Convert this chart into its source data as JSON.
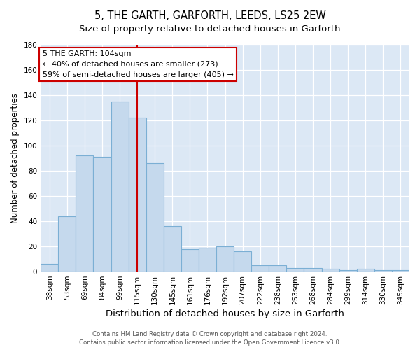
{
  "title": "5, THE GARTH, GARFORTH, LEEDS, LS25 2EW",
  "subtitle": "Size of property relative to detached houses in Garforth",
  "xlabel": "Distribution of detached houses by size in Garforth",
  "ylabel": "Number of detached properties",
  "categories": [
    "38sqm",
    "53sqm",
    "69sqm",
    "84sqm",
    "99sqm",
    "115sqm",
    "130sqm",
    "145sqm",
    "161sqm",
    "176sqm",
    "192sqm",
    "207sqm",
    "222sqm",
    "238sqm",
    "253sqm",
    "268sqm",
    "284sqm",
    "299sqm",
    "314sqm",
    "330sqm",
    "345sqm"
  ],
  "values": [
    6,
    44,
    92,
    91,
    135,
    122,
    86,
    36,
    18,
    19,
    20,
    16,
    5,
    5,
    3,
    3,
    2,
    1,
    2,
    1,
    1
  ],
  "bar_color": "#c5d9ed",
  "bar_edge_color": "#7bafd4",
  "vline_x": 5.0,
  "vline_color": "#cc0000",
  "ylim": [
    0,
    180
  ],
  "yticks": [
    0,
    20,
    40,
    60,
    80,
    100,
    120,
    140,
    160,
    180
  ],
  "annotation_title": "5 THE GARTH: 104sqm",
  "annotation_line2": "← 40% of detached houses are smaller (273)",
  "annotation_line3": "59% of semi-detached houses are larger (405) →",
  "footer_line1": "Contains HM Land Registry data © Crown copyright and database right 2024.",
  "footer_line2": "Contains public sector information licensed under the Open Government Licence v3.0.",
  "bg_color": "#dce8f5",
  "title_fontsize": 10.5,
  "subtitle_fontsize": 9.5,
  "xlabel_fontsize": 9.5,
  "ylabel_fontsize": 8.5,
  "tick_fontsize": 7.5,
  "annot_fontsize": 8.0,
  "footer_fontsize": 6.2
}
